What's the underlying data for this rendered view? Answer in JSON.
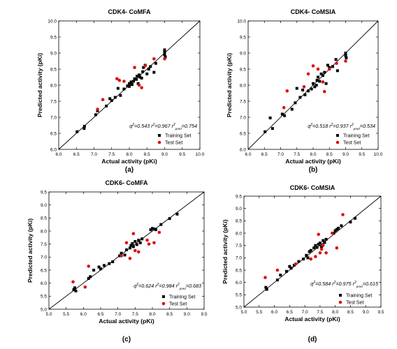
{
  "chart_data": [
    {
      "type": "scatter",
      "title": "CDK4- CoMFA",
      "xlabel": "Actual activity  (pKi)",
      "ylabel": "Predicted activity (pKi)",
      "xlim": [
        6.0,
        10.0
      ],
      "ylim": [
        6.0,
        10.0
      ],
      "xticks": [
        "6.0",
        "6.5",
        "7.0",
        "7.5",
        "8.0",
        "8.5",
        "9.0",
        "9.5",
        "10.0"
      ],
      "yticks": [
        "6.0",
        "6.5",
        "7.0",
        "7.5",
        "8.0",
        "8.5",
        "9.0",
        "9.5",
        "10.0"
      ],
      "panel_label": "(a)",
      "stats": {
        "q2": "0.543",
        "r2": "0.967",
        "r2pred": "0.754"
      },
      "series": [
        {
          "name": "Training Set",
          "marker": "square",
          "color": "#000000",
          "points": [
            [
              6.52,
              6.55
            ],
            [
              6.72,
              6.65
            ],
            [
              6.73,
              6.72
            ],
            [
              7.05,
              7.08
            ],
            [
              7.1,
              7.2
            ],
            [
              7.35,
              7.35
            ],
            [
              7.45,
              7.58
            ],
            [
              7.5,
              7.52
            ],
            [
              7.6,
              7.62
            ],
            [
              7.68,
              7.9
            ],
            [
              7.75,
              7.68
            ],
            [
              7.85,
              7.88
            ],
            [
              7.95,
              7.98
            ],
            [
              8.0,
              7.96
            ],
            [
              8.0,
              8.05
            ],
            [
              8.05,
              8.1
            ],
            [
              8.08,
              8.02
            ],
            [
              8.12,
              8.12
            ],
            [
              8.15,
              8.2
            ],
            [
              8.2,
              8.18
            ],
            [
              8.22,
              8.28
            ],
            [
              8.25,
              8.05
            ],
            [
              8.28,
              8.32
            ],
            [
              8.3,
              8.25
            ],
            [
              8.35,
              8.22
            ],
            [
              8.38,
              8.42
            ],
            [
              8.4,
              8.55
            ],
            [
              8.45,
              8.62
            ],
            [
              8.5,
              8.35
            ],
            [
              8.55,
              8.5
            ],
            [
              8.6,
              8.58
            ],
            [
              8.7,
              8.4
            ],
            [
              8.75,
              8.68
            ],
            [
              9.0,
              9.02
            ],
            [
              9.0,
              9.1
            ],
            [
              9.0,
              8.95
            ],
            [
              9.02,
              8.88
            ]
          ]
        },
        {
          "name": "Test Set",
          "marker": "circle",
          "color": "#dd1111",
          "points": [
            [
              7.1,
              7.25
            ],
            [
              7.25,
              7.55
            ],
            [
              7.65,
              8.2
            ],
            [
              7.72,
              8.15
            ],
            [
              7.85,
              8.12
            ],
            [
              8.15,
              8.55
            ],
            [
              8.28,
              8.0
            ],
            [
              8.35,
              7.92
            ],
            [
              8.45,
              8.6
            ],
            [
              8.7,
              8.82
            ],
            [
              9.0,
              8.82
            ]
          ]
        }
      ]
    },
    {
      "type": "scatter",
      "title": "CDK4- CoMSIA",
      "xlabel": "Actual activity  (pKi)",
      "ylabel": "Predicted activity (pKi)",
      "xlim": [
        6.0,
        10.0
      ],
      "ylim": [
        6.0,
        10.0
      ],
      "xticks": [
        "6.0",
        "6.5",
        "7.0",
        "7.5",
        "8.0",
        "8.5",
        "9.0",
        "9.5",
        "10.0"
      ],
      "yticks": [
        "6.0",
        "6.5",
        "7.0",
        "7.5",
        "8.0",
        "8.5",
        "9.0",
        "9.5",
        "10.0"
      ],
      "panel_label": "(b)",
      "stats": {
        "q2": "0.518",
        "r2": "0.937",
        "r2pred": "0.534"
      },
      "series": [
        {
          "name": "Training Set",
          "marker": "square",
          "color": "#000000",
          "points": [
            [
              6.52,
              6.55
            ],
            [
              6.68,
              6.98
            ],
            [
              6.75,
              6.65
            ],
            [
              7.05,
              7.1
            ],
            [
              7.12,
              7.05
            ],
            [
              7.35,
              7.25
            ],
            [
              7.45,
              7.45
            ],
            [
              7.5,
              7.9
            ],
            [
              7.6,
              7.62
            ],
            [
              7.68,
              7.85
            ],
            [
              7.75,
              7.7
            ],
            [
              7.85,
              7.82
            ],
            [
              7.95,
              7.88
            ],
            [
              8.0,
              8.05
            ],
            [
              8.05,
              7.95
            ],
            [
              8.1,
              8.0
            ],
            [
              8.12,
              8.15
            ],
            [
              8.15,
              8.25
            ],
            [
              8.2,
              8.12
            ],
            [
              8.25,
              8.35
            ],
            [
              8.3,
              8.3
            ],
            [
              8.35,
              8.4
            ],
            [
              8.4,
              8.05
            ],
            [
              8.45,
              8.62
            ],
            [
              8.5,
              8.55
            ],
            [
              8.6,
              8.58
            ],
            [
              8.7,
              8.8
            ],
            [
              8.75,
              8.45
            ],
            [
              9.0,
              9.0
            ],
            [
              9.0,
              8.92
            ],
            [
              9.02,
              8.85
            ]
          ]
        },
        {
          "name": "Test Set",
          "marker": "circle",
          "color": "#dd1111",
          "points": [
            [
              7.1,
              7.3
            ],
            [
              7.2,
              7.82
            ],
            [
              7.72,
              7.95
            ],
            [
              7.85,
              8.35
            ],
            [
              8.0,
              8.6
            ],
            [
              8.15,
              8.5
            ],
            [
              8.3,
              8.1
            ],
            [
              8.35,
              7.8
            ],
            [
              8.5,
              8.5
            ],
            [
              8.72,
              8.68
            ],
            [
              9.0,
              8.75
            ]
          ]
        }
      ]
    },
    {
      "type": "scatter",
      "title": "CDK6- CoMFA",
      "xlabel": "Actual activity  (pKi)",
      "ylabel": "Predicted activity (pKi)",
      "xlim": [
        5.0,
        9.5
      ],
      "ylim": [
        5.0,
        9.5
      ],
      "xticks": [
        "5.0",
        "5.5",
        "6.0",
        "6.5",
        "7.0",
        "7.5",
        "8.0",
        "8.5",
        "9.0",
        "9.5"
      ],
      "yticks": [
        "5.0",
        "5.5",
        "6.0",
        "6.5",
        "7.0",
        "7.5",
        "8.0",
        "8.5",
        "9.0",
        "9.5"
      ],
      "panel_label": "(c)",
      "stats": {
        "q2": "0.624",
        "r2": "0.984",
        "r2pred": "0.683"
      },
      "series": [
        {
          "name": "Training Set",
          "marker": "square",
          "color": "#000000",
          "points": [
            [
              5.72,
              5.75
            ],
            [
              5.75,
              5.82
            ],
            [
              5.78,
              5.7
            ],
            [
              6.15,
              6.18
            ],
            [
              6.2,
              6.25
            ],
            [
              6.3,
              6.5
            ],
            [
              6.45,
              6.62
            ],
            [
              6.5,
              6.55
            ],
            [
              6.6,
              6.68
            ],
            [
              6.75,
              6.75
            ],
            [
              6.85,
              6.82
            ],
            [
              7.05,
              7.05
            ],
            [
              7.1,
              7.15
            ],
            [
              7.2,
              7.08
            ],
            [
              7.25,
              7.28
            ],
            [
              7.35,
              7.35
            ],
            [
              7.38,
              7.45
            ],
            [
              7.42,
              7.52
            ],
            [
              7.45,
              7.4
            ],
            [
              7.5,
              7.6
            ],
            [
              7.55,
              7.48
            ],
            [
              7.6,
              7.65
            ],
            [
              7.65,
              7.55
            ],
            [
              7.7,
              7.7
            ],
            [
              7.95,
              8.05
            ],
            [
              8.0,
              8.1
            ],
            [
              8.05,
              8.08
            ],
            [
              8.1,
              8.05
            ],
            [
              8.25,
              8.25
            ],
            [
              8.5,
              8.48
            ],
            [
              8.72,
              8.65
            ]
          ]
        },
        {
          "name": "Test Set",
          "marker": "circle",
          "color": "#dd1111",
          "points": [
            [
              5.7,
              6.05
            ],
            [
              6.05,
              5.85
            ],
            [
              6.15,
              6.65
            ],
            [
              7.1,
              7.05
            ],
            [
              7.25,
              7.55
            ],
            [
              7.35,
              6.95
            ],
            [
              7.45,
              7.9
            ],
            [
              7.5,
              7.25
            ],
            [
              7.6,
              7.2
            ],
            [
              7.85,
              7.65
            ],
            [
              7.9,
              7.5
            ],
            [
              8.05,
              7.55
            ],
            [
              8.2,
              7.95
            ]
          ]
        }
      ]
    },
    {
      "type": "scatter",
      "title": "CDK6- CoMSIA",
      "xlabel": "Actual activity  (pKi)",
      "ylabel": "Predicted activity (pKi)",
      "xlim": [
        5.0,
        9.5
      ],
      "ylim": [
        5.0,
        9.5
      ],
      "xticks": [
        "5.0",
        "5.5",
        "6.0",
        "6.5",
        "7.0",
        "7.5",
        "8.0",
        "8.5",
        "9.0",
        "9.5"
      ],
      "yticks": [
        "5.0",
        "5.5",
        "6.0",
        "6.5",
        "7.0",
        "7.5",
        "8.0",
        "8.5",
        "9.0",
        "9.5"
      ],
      "panel_label": "(d)",
      "stats": {
        "q2": "0.584",
        "r2": "0.975",
        "r2pred": "0.615"
      },
      "series": [
        {
          "name": "Training Set",
          "marker": "square",
          "color": "#000000",
          "points": [
            [
              5.72,
              5.8
            ],
            [
              5.75,
              5.72
            ],
            [
              6.1,
              6.1
            ],
            [
              6.2,
              6.3
            ],
            [
              6.4,
              6.45
            ],
            [
              6.5,
              6.65
            ],
            [
              6.55,
              6.58
            ],
            [
              6.65,
              6.7
            ],
            [
              6.8,
              6.85
            ],
            [
              6.95,
              6.95
            ],
            [
              7.05,
              7.1
            ],
            [
              7.1,
              7.0
            ],
            [
              7.15,
              7.25
            ],
            [
              7.2,
              7.3
            ],
            [
              7.3,
              7.4
            ],
            [
              7.35,
              7.5
            ],
            [
              7.4,
              7.42
            ],
            [
              7.45,
              7.55
            ],
            [
              7.5,
              7.6
            ],
            [
              7.55,
              7.45
            ],
            [
              7.6,
              7.7
            ],
            [
              7.65,
              7.62
            ],
            [
              7.7,
              7.75
            ],
            [
              7.95,
              8.0
            ],
            [
              8.0,
              8.1
            ],
            [
              8.05,
              8.15
            ],
            [
              8.1,
              8.2
            ],
            [
              8.2,
              8.3
            ],
            [
              8.5,
              8.45
            ],
            [
              8.65,
              8.6
            ]
          ]
        },
        {
          "name": "Test Set",
          "marker": "circle",
          "color": "#dd1111",
          "points": [
            [
              5.7,
              6.2
            ],
            [
              6.1,
              6.5
            ],
            [
              6.7,
              6.75
            ],
            [
              7.2,
              6.95
            ],
            [
              7.35,
              7.05
            ],
            [
              7.45,
              7.95
            ],
            [
              7.5,
              7.2
            ],
            [
              7.55,
              7.35
            ],
            [
              7.6,
              7.5
            ],
            [
              7.7,
              7.2
            ],
            [
              7.9,
              8.0
            ],
            [
              8.05,
              7.4
            ],
            [
              8.25,
              8.75
            ]
          ]
        }
      ]
    }
  ]
}
